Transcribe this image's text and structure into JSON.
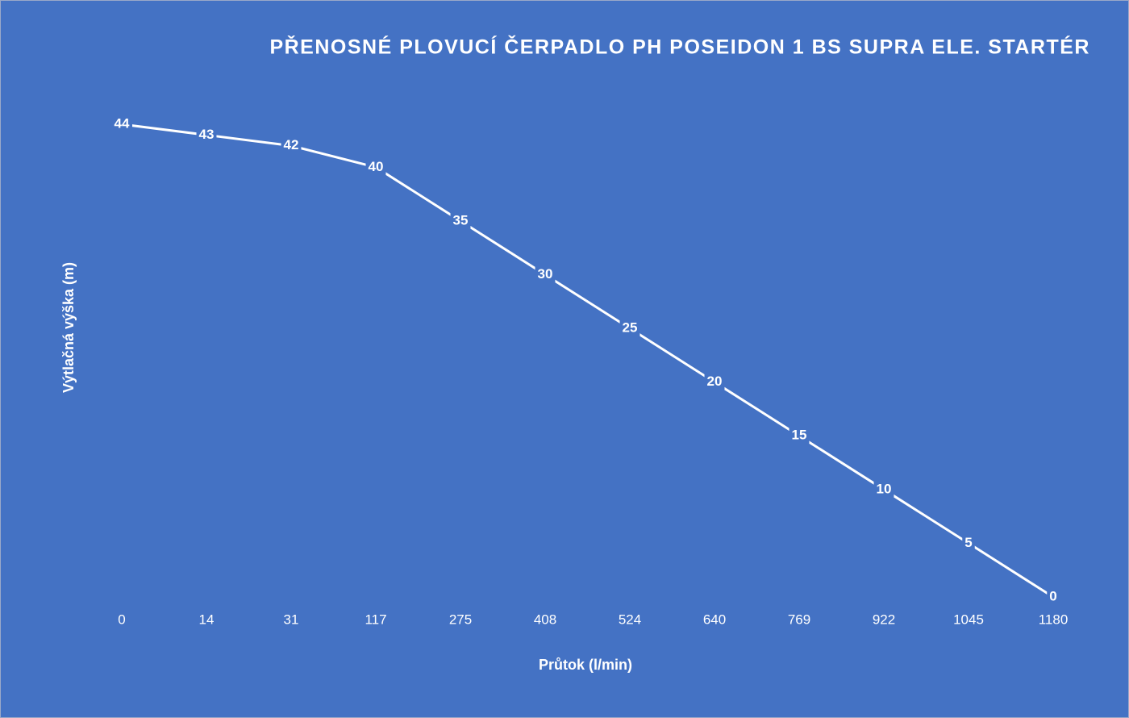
{
  "chart_data": {
    "type": "line",
    "title": "PŘENOSNÉ PLOVUCÍ ČERPADLO PH POSEIDON 1 BS SUPRA ELE. STARTÉR",
    "x_label": "Průtok (l/min)",
    "y_label": "Výtlačná výška (m)",
    "categories": [
      "0",
      "14",
      "31",
      "117",
      "275",
      "408",
      "524",
      "640",
      "769",
      "922",
      "1045",
      "1180"
    ],
    "values": [
      44,
      43,
      42,
      40,
      35,
      30,
      25,
      20,
      15,
      10,
      5,
      0
    ],
    "color": "#ffffff",
    "background": "#4472c4"
  }
}
